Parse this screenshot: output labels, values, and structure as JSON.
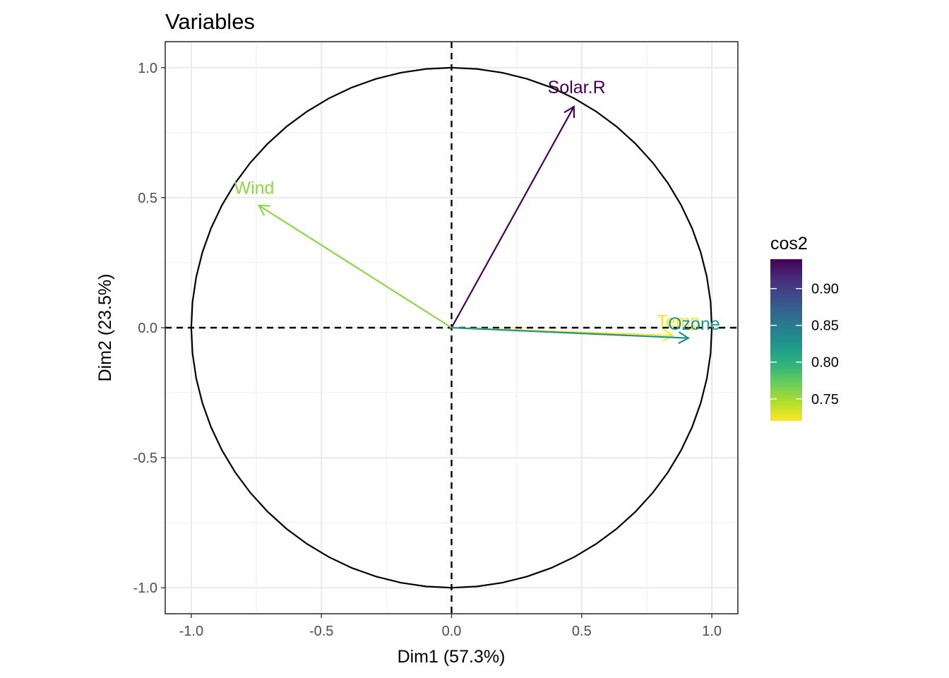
{
  "chart_data": {
    "type": "scatter",
    "title": "Variables",
    "xlabel": "Dim1 (57.3%)",
    "ylabel": "Dim2 (23.5%)",
    "xlim": [
      -1.1,
      1.1
    ],
    "ylim": [
      -1.1,
      1.1
    ],
    "x_ticks": [
      -1.0,
      -0.5,
      0.0,
      0.5,
      1.0
    ],
    "x_tick_labels": [
      "-1.0",
      "-0.5",
      "0.0",
      "0.5",
      "1.0"
    ],
    "y_ticks": [
      -1.0,
      -0.5,
      0.0,
      0.5,
      1.0
    ],
    "y_tick_labels": [
      "-1.0",
      "-0.5",
      "0.0",
      "0.5",
      "1.0"
    ],
    "grid": true,
    "unit_circle": true,
    "reference_lines": "dashed at x=0 and y=0",
    "variables": [
      {
        "name": "Solar.R",
        "x": 0.47,
        "y": 0.85,
        "cos2": 0.94,
        "color": "#440154"
      },
      {
        "name": "Wind",
        "x": -0.74,
        "y": 0.47,
        "cos2": 0.77,
        "color": "#8FD744"
      },
      {
        "name": "Temp",
        "x": 0.85,
        "y": -0.03,
        "cos2": 0.72,
        "color": "#FDE725"
      },
      {
        "name": "Ozone",
        "x": 0.91,
        "y": -0.04,
        "cos2": 0.83,
        "color": "#21918C"
      }
    ],
    "legend": {
      "title": "cos2",
      "position": "right",
      "range": [
        0.72,
        0.94
      ],
      "ticks": [
        0.75,
        0.8,
        0.85,
        0.9
      ],
      "tick_labels": [
        "0.75",
        "0.80",
        "0.85",
        "0.90"
      ],
      "colors": [
        "#FDE725",
        "#B5DE2B",
        "#6ECE58",
        "#35B779",
        "#1F9E89",
        "#26828E",
        "#31688E",
        "#3E4A89",
        "#482878",
        "#440154"
      ]
    }
  }
}
